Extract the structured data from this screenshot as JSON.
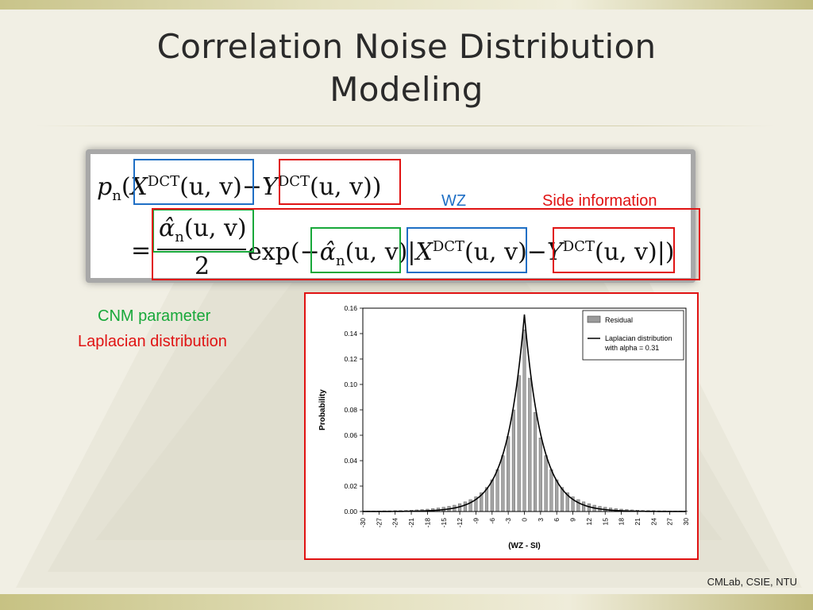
{
  "slide": {
    "title_line1": "Correlation Noise Distribution",
    "title_line2": "Modeling",
    "footer": "CMLab, CSIE, NTU"
  },
  "formula": {
    "p": "p",
    "n": "n",
    "lparen": "(",
    "X": "X",
    "Y": "Y",
    "dct": "DCT",
    "uv": "(u, v)",
    "minus": "−",
    "rparen": ")",
    "equals": "=",
    "alpha": "α̂",
    "two": "2",
    "exp": "exp",
    "exp_open": "(−",
    "bar": "|",
    "close": "|)"
  },
  "annotations": {
    "wz": "WZ",
    "side_info": "Side information",
    "cnm": "CNM parameter",
    "laplacian": "Laplacian distribution"
  },
  "colors": {
    "wz_blue": "#1f6fc5",
    "side_red": "#e01313",
    "cnm_green": "#18a83a"
  },
  "chart_data": {
    "type": "bar",
    "xlabel": "(WZ - SI)",
    "ylabel": "Probability",
    "xlim": [
      -30,
      30
    ],
    "ylim": [
      0,
      0.16
    ],
    "x_ticks": [
      -30,
      -27,
      -24,
      -21,
      -18,
      -15,
      -12,
      -9,
      -6,
      -3,
      0,
      3,
      6,
      9,
      12,
      15,
      18,
      21,
      24,
      27,
      30
    ],
    "y_ticks": [
      "0.00",
      "0.02",
      "0.04",
      "0.06",
      "0.08",
      "0.10",
      "0.12",
      "0.14",
      "0.16"
    ],
    "legend": {
      "position": "top-right",
      "bar_label": "Residual",
      "line_label_1": "Laplacian distribution",
      "line_label_2": "with alpha = 0.31"
    },
    "alpha": 0.31,
    "x": [
      -30,
      -29,
      -28,
      -27,
      -26,
      -25,
      -24,
      -23,
      -22,
      -21,
      -20,
      -19,
      -18,
      -17,
      -16,
      -15,
      -14,
      -13,
      -12,
      -11,
      -10,
      -9,
      -8,
      -7,
      -6,
      -5,
      -4,
      -3,
      -2,
      -1,
      0,
      1,
      2,
      3,
      4,
      5,
      6,
      7,
      8,
      9,
      10,
      11,
      12,
      13,
      14,
      15,
      16,
      17,
      18,
      19,
      20,
      21,
      22,
      23,
      24,
      25,
      26,
      27,
      28,
      29,
      30
    ],
    "residual": [
      0.0005,
      0.0005,
      0.0005,
      0.0005,
      0.0006,
      0.0006,
      0.0007,
      0.0008,
      0.0009,
      0.0011,
      0.0013,
      0.0016,
      0.0019,
      0.0023,
      0.0028,
      0.0034,
      0.0041,
      0.005,
      0.0062,
      0.0076,
      0.0094,
      0.0116,
      0.0148,
      0.019,
      0.025,
      0.033,
      0.044,
      0.059,
      0.08,
      0.107,
      0.143,
      0.105,
      0.078,
      0.058,
      0.044,
      0.033,
      0.025,
      0.019,
      0.0148,
      0.0116,
      0.0094,
      0.0076,
      0.0062,
      0.005,
      0.0041,
      0.0034,
      0.0028,
      0.0023,
      0.0019,
      0.0016,
      0.0013,
      0.0011,
      0.0009,
      0.0008,
      0.0007,
      0.0006,
      0.0006,
      0.0005,
      0.0005,
      0.0005,
      0.0005
    ]
  }
}
